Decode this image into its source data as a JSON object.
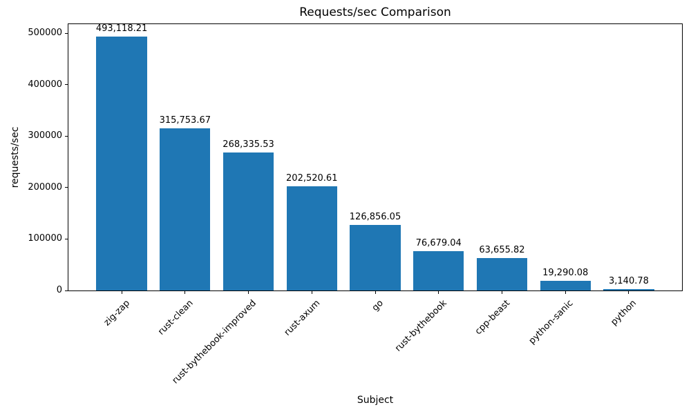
{
  "chart_data": {
    "type": "bar",
    "title": "Requests/sec Comparison",
    "xlabel": "Subject",
    "ylabel": "requests/sec",
    "categories": [
      "zig-zap",
      "rust-clean",
      "rust-bythebook-improved",
      "rust-axum",
      "go",
      "rust-bythebook",
      "cpp-beast",
      "python-sanic",
      "python"
    ],
    "values": [
      493118.21,
      315753.67,
      268335.53,
      202520.61,
      126856.05,
      76679.04,
      63655.82,
      19290.08,
      3140.78
    ],
    "value_labels": [
      "493,118.21",
      "315,753.67",
      "268,335.53",
      "202,520.61",
      "126,856.05",
      "76,679.04",
      "63,655.82",
      "19,290.08",
      "3,140.78"
    ],
    "y_ticks": [
      0,
      100000,
      200000,
      300000,
      400000,
      500000
    ],
    "y_tick_labels": [
      "0",
      "100000",
      "200000",
      "300000",
      "400000",
      "500000"
    ],
    "ylim": [
      0,
      517774
    ],
    "bar_width_fraction": 0.8,
    "x_margin_fraction": 0.05,
    "bar_color": "#1f77b4",
    "grid": false,
    "legend": null,
    "x_tick_rotation_deg": 45
  }
}
